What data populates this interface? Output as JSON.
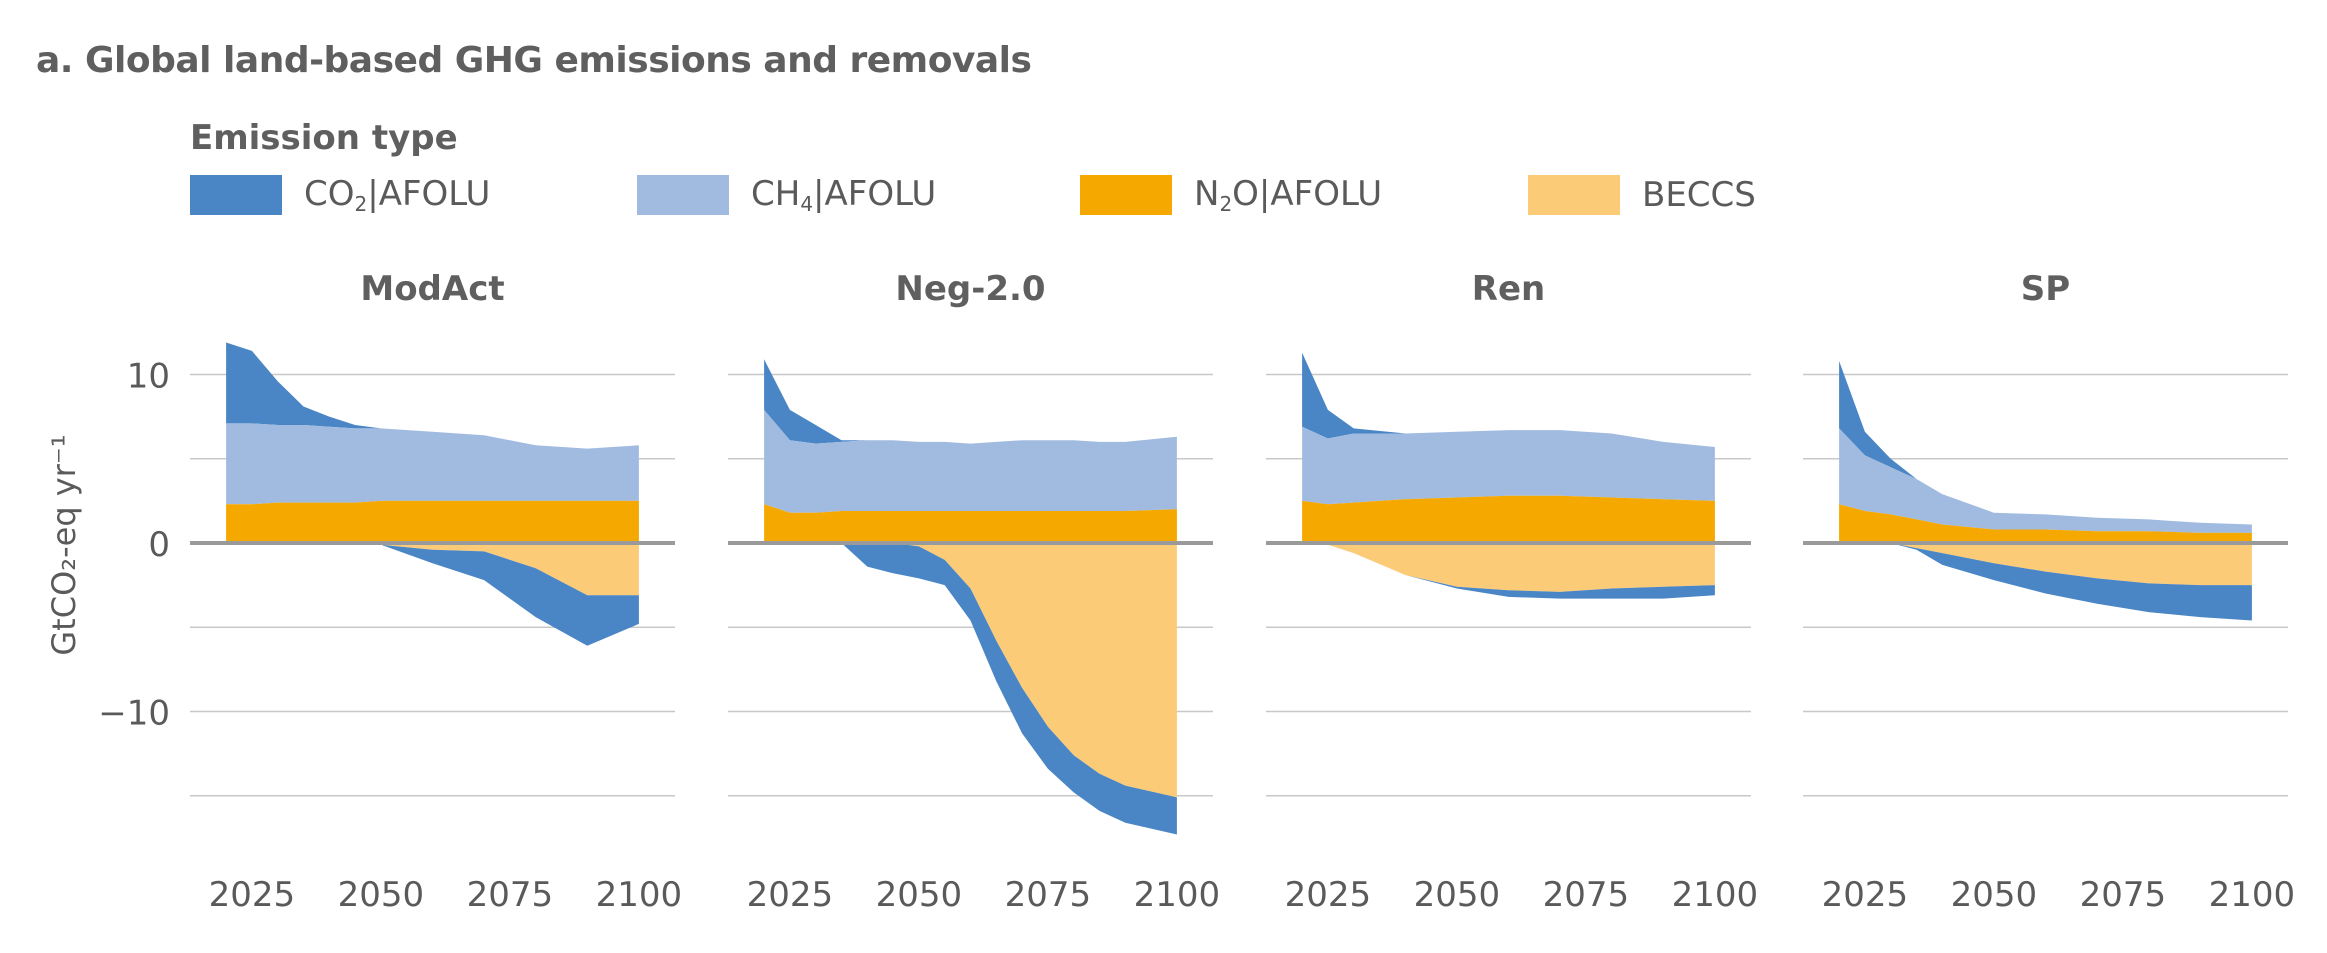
{
  "title": "a. Global land-based GHG emissions and removals",
  "legend": {
    "title": "Emission type",
    "items": [
      {
        "key": "co2",
        "main": "CO",
        "sub": "2",
        "rest": "|AFOLU",
        "color": "#4a86c5"
      },
      {
        "key": "ch4",
        "main": "CH",
        "sub": "4",
        "rest": "|AFOLU",
        "color": "#a1bbe0"
      },
      {
        "key": "n2o",
        "main": "N",
        "sub": "2",
        "rest": "O|AFOLU",
        "color": "#f5a800"
      },
      {
        "key": "beccs",
        "main": "BECCS",
        "sub": "",
        "rest": "",
        "color": "#fccb77"
      }
    ]
  },
  "chart_data": {
    "type": "area",
    "ylabel": "GtCO₂-eq yr⁻¹",
    "ylim": [
      -17.5,
      12.5
    ],
    "y_ticks": [
      10,
      0,
      -10
    ],
    "y_tick_labels": [
      "10",
      "0",
      "−10"
    ],
    "gridlines": [
      10,
      5,
      0,
      -5,
      -10,
      -15
    ],
    "xlim": [
      2013,
      2107
    ],
    "x_ticks": [
      2025,
      2050,
      2075,
      2100
    ],
    "panels": [
      {
        "name": "ModAct",
        "x": [
          2020,
          2025,
          2030,
          2035,
          2040,
          2045,
          2050,
          2060,
          2070,
          2080,
          2090,
          2100
        ],
        "n2o": [
          2.3,
          2.3,
          2.4,
          2.4,
          2.4,
          2.4,
          2.5,
          2.5,
          2.5,
          2.5,
          2.5,
          2.5
        ],
        "ch4": [
          4.8,
          4.8,
          4.6,
          4.6,
          4.5,
          4.4,
          4.3,
          4.1,
          3.9,
          3.3,
          3.1,
          3.3
        ],
        "co2_pos": [
          4.8,
          4.3,
          2.6,
          1.1,
          0.6,
          0.2,
          0.0,
          0.0,
          0.0,
          0.0,
          0.0,
          0.0
        ],
        "beccs": [
          0.0,
          0.0,
          0.0,
          0.0,
          0.0,
          0.0,
          -0.1,
          -0.4,
          -0.5,
          -1.5,
          -3.1,
          -3.1
        ],
        "co2_neg": [
          0.0,
          0.0,
          0.0,
          0.0,
          0.0,
          0.0,
          0.0,
          -0.8,
          -1.7,
          -2.9,
          -3.0,
          -1.7
        ]
      },
      {
        "name": "Neg-2.0",
        "x": [
          2020,
          2025,
          2030,
          2035,
          2040,
          2045,
          2050,
          2055,
          2060,
          2065,
          2070,
          2075,
          2080,
          2085,
          2090,
          2100
        ],
        "n2o": [
          2.3,
          1.8,
          1.8,
          1.9,
          1.9,
          1.9,
          1.9,
          1.9,
          1.9,
          1.9,
          1.9,
          1.9,
          1.9,
          1.9,
          1.9,
          2.0
        ],
        "ch4": [
          5.6,
          4.3,
          4.1,
          4.1,
          4.2,
          4.2,
          4.1,
          4.1,
          4.0,
          4.1,
          4.2,
          4.2,
          4.2,
          4.1,
          4.1,
          4.3
        ],
        "co2_pos": [
          3.0,
          1.8,
          1.1,
          0.1,
          0.0,
          0.0,
          0.0,
          0.0,
          0.0,
          0.0,
          0.0,
          0.0,
          0.0,
          0.0,
          0.0,
          0.0
        ],
        "beccs": [
          0.0,
          0.0,
          0.0,
          0.0,
          0.0,
          0.0,
          -0.2,
          -1.0,
          -2.7,
          -5.8,
          -8.6,
          -10.9,
          -12.6,
          -13.7,
          -14.4,
          -15.1
        ],
        "co2_neg": [
          0.0,
          0.0,
          0.0,
          0.0,
          -1.4,
          -1.8,
          -1.9,
          -1.5,
          -1.9,
          -2.4,
          -2.7,
          -2.5,
          -2.2,
          -2.2,
          -2.2,
          -2.2
        ]
      },
      {
        "name": "Ren",
        "x": [
          2020,
          2025,
          2030,
          2040,
          2050,
          2060,
          2070,
          2080,
          2090,
          2100
        ],
        "n2o": [
          2.5,
          2.3,
          2.4,
          2.6,
          2.7,
          2.8,
          2.8,
          2.7,
          2.6,
          2.5
        ],
        "ch4": [
          4.4,
          3.9,
          4.1,
          3.9,
          3.9,
          3.9,
          3.9,
          3.8,
          3.4,
          3.2
        ],
        "co2_pos": [
          4.4,
          1.7,
          0.3,
          0.0,
          0.0,
          0.0,
          0.0,
          0.0,
          0.0,
          0.0
        ],
        "beccs": [
          0.0,
          -0.1,
          -0.6,
          -1.9,
          -2.6,
          -2.8,
          -2.9,
          -2.7,
          -2.6,
          -2.5
        ],
        "co2_neg": [
          0.0,
          0.0,
          0.0,
          0.0,
          -0.1,
          -0.4,
          -0.4,
          -0.6,
          -0.7,
          -0.6
        ]
      },
      {
        "name": "SP",
        "x": [
          2020,
          2025,
          2030,
          2035,
          2040,
          2050,
          2060,
          2070,
          2080,
          2090,
          2100
        ],
        "n2o": [
          2.3,
          1.9,
          1.7,
          1.4,
          1.1,
          0.8,
          0.8,
          0.7,
          0.7,
          0.6,
          0.6
        ],
        "ch4": [
          4.5,
          3.3,
          2.8,
          2.4,
          1.8,
          1.0,
          0.9,
          0.8,
          0.7,
          0.6,
          0.5
        ],
        "co2_pos": [
          4.0,
          1.4,
          0.5,
          0.0,
          0.0,
          0.0,
          0.0,
          0.0,
          0.0,
          0.0,
          0.0
        ],
        "beccs": [
          0.0,
          0.0,
          0.0,
          -0.3,
          -0.6,
          -1.2,
          -1.7,
          -2.1,
          -2.4,
          -2.5,
          -2.5
        ],
        "co2_neg": [
          0.0,
          0.0,
          0.0,
          -0.1,
          -0.7,
          -1.0,
          -1.3,
          -1.5,
          -1.7,
          -1.9,
          -2.1
        ]
      }
    ]
  }
}
